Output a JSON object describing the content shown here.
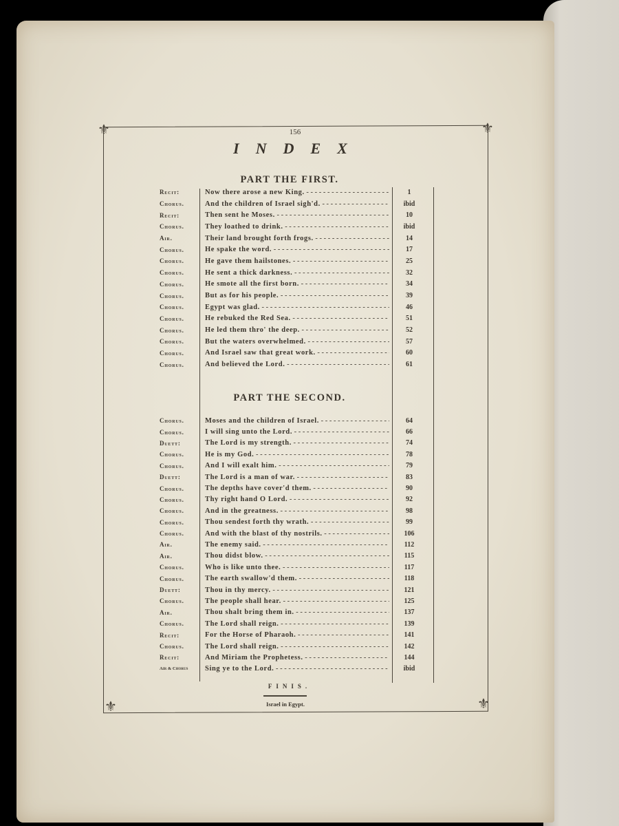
{
  "page_number": "156",
  "title": "INDEX",
  "part_first": {
    "heading": "PART THE FIRST.",
    "entries": [
      {
        "type": "Recit:",
        "title": "Now there arose a new King.",
        "page": "1"
      },
      {
        "type": "Chorus.",
        "title": "And the children of Israel sigh'd.",
        "page": "ibid"
      },
      {
        "type": "Recit:",
        "title": "Then sent he Moses.",
        "page": "10"
      },
      {
        "type": "Chorus.",
        "title": "They loathed to drink.",
        "page": "ibid"
      },
      {
        "type": "Air.",
        "title": "Their land brought forth frogs.",
        "page": "14"
      },
      {
        "type": "Chorus.",
        "title": "He spake the word.",
        "page": "17"
      },
      {
        "type": "Chorus.",
        "title": "He gave them hailstones.",
        "page": "25"
      },
      {
        "type": "Chorus.",
        "title": "He sent a thick darkness.",
        "page": "32"
      },
      {
        "type": "Chorus.",
        "title": "He smote all the first born.",
        "page": "34"
      },
      {
        "type": "Chorus.",
        "title": "But as for his people.",
        "page": "39"
      },
      {
        "type": "Chorus.",
        "title": "Egypt was glad.",
        "page": "46"
      },
      {
        "type": "Chorus.",
        "title": "He rebuked the Red Sea.",
        "page": "51"
      },
      {
        "type": "Chorus.",
        "title": "He led them thro' the deep.",
        "page": "52"
      },
      {
        "type": "Chorus.",
        "title": "But the waters overwhelmed.",
        "page": "57"
      },
      {
        "type": "Chorus.",
        "title": "And Israel saw that great work.",
        "page": "60"
      },
      {
        "type": "Chorus.",
        "title": "And believed the Lord.",
        "page": "61"
      }
    ]
  },
  "part_second": {
    "heading": "PART THE SECOND.",
    "entries": [
      {
        "type": "Chorus.",
        "title": "Moses and the children of Israel.",
        "page": "64"
      },
      {
        "type": "Chorus.",
        "title": "I will sing unto the Lord.",
        "page": "66"
      },
      {
        "type": "Duett:",
        "title": "The Lord is my strength.",
        "page": "74"
      },
      {
        "type": "Chorus.",
        "title": "He is my God.",
        "page": "78"
      },
      {
        "type": "Chorus.",
        "title": "And I will exalt him.",
        "page": "79"
      },
      {
        "type": "Duett:",
        "title": "The Lord is a man of war.",
        "page": "83"
      },
      {
        "type": "Chorus.",
        "title": "The depths have cover'd them.",
        "page": "90"
      },
      {
        "type": "Chorus.",
        "title": "Thy right hand O Lord.",
        "page": "92"
      },
      {
        "type": "Chorus.",
        "title": "And in the greatness.",
        "page": "98"
      },
      {
        "type": "Chorus.",
        "title": "Thou sendest forth thy wrath.",
        "page": "99"
      },
      {
        "type": "Chorus.",
        "title": "And with the blast of thy nostrils.",
        "page": "106"
      },
      {
        "type": "Air.",
        "title": "The enemy said.",
        "page": "112"
      },
      {
        "type": "Air.",
        "title": "Thou didst blow.",
        "page": "115"
      },
      {
        "type": "Chorus.",
        "title": "Who is like unto thee.",
        "page": "117"
      },
      {
        "type": "Chorus.",
        "title": "The earth swallow'd them.",
        "page": "118"
      },
      {
        "type": "Duett:",
        "title": "Thou in thy mercy.",
        "page": "121"
      },
      {
        "type": "Chorus.",
        "title": "The people shall hear.",
        "page": "125"
      },
      {
        "type": "Air.",
        "title": "Thou shalt bring them in.",
        "page": "137"
      },
      {
        "type": "Chorus.",
        "title": "The Lord shall reign.",
        "page": "139"
      },
      {
        "type": "Recit:",
        "title": "For the Horse of Pharaoh.",
        "page": "141"
      },
      {
        "type": "Chorus.",
        "title": "The Lord shall reign.",
        "page": "142"
      },
      {
        "type": "Recit:",
        "title": "And Miriam the Prophetess.",
        "page": "144"
      },
      {
        "type": "Air & Chorus",
        "title": "Sing ye to the Lord.",
        "page": "ibid"
      }
    ]
  },
  "finis": "FINIS.",
  "footer": "Israel in Egypt."
}
